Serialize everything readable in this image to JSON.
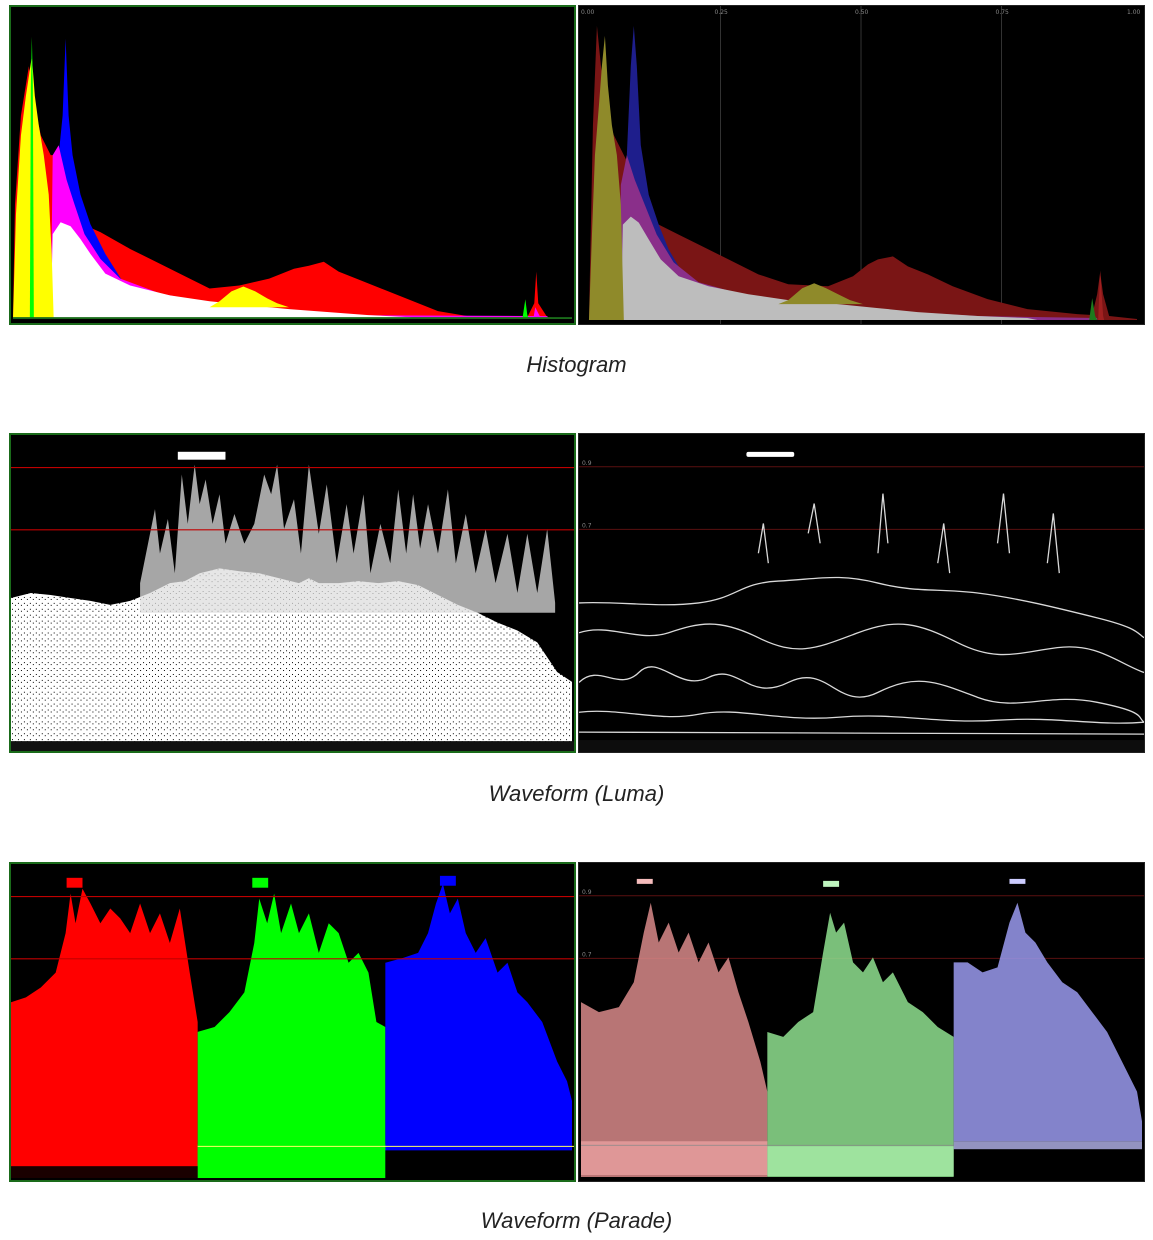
{
  "captions": {
    "histogram": "Histogram",
    "waveform_luma": "Waveform (Luma)",
    "waveform_parade": "Waveform (Parade)"
  },
  "histogram_right": {
    "tick_labels": [
      "0.00",
      "0.25",
      "0.50",
      "0.75",
      "1.00"
    ]
  },
  "luma_right": {
    "level_labels": [
      "0.9",
      "0.7"
    ]
  },
  "parade_right": {
    "level_labels": [
      "0.9",
      "0.7"
    ]
  },
  "colors": {
    "red": "#ff0000",
    "green": "#00ff00",
    "blue": "#0000ff",
    "yellow": "#ffff00",
    "magenta": "#ff00ff",
    "dark_red": "#7a1515",
    "olive": "#8f8a2a",
    "grey_fill": "#bdbdbd",
    "panel_border": "#1a6b1a",
    "reference_line": "#c00000"
  }
}
